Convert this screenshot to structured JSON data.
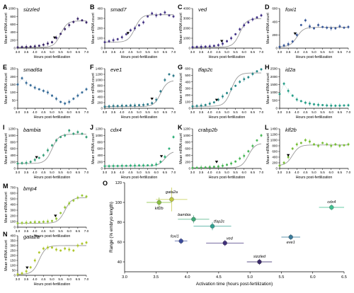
{
  "x_ticks": [
    "3.0",
    "3.5",
    "4.0",
    "4.5",
    "5.0",
    "5.5",
    "6.0",
    "6.5",
    "7.0"
  ],
  "x_label": "Hours post-fertilization",
  "y_label": "Mean mRNA count",
  "chart_data": [
    {
      "panel": "A",
      "title": "sizzled",
      "type": "line",
      "color": "#3d2a6b",
      "x": [
        3.0,
        3.25,
        3.5,
        3.75,
        4.0,
        4.25,
        4.5,
        4.75,
        5.0,
        5.25,
        5.5,
        5.75,
        6.0,
        6.25,
        6.5,
        6.75,
        7.0
      ],
      "values": [
        20,
        25,
        30,
        35,
        45,
        60,
        85,
        115,
        150,
        260,
        360,
        480,
        580,
        660,
        740,
        700,
        650
      ],
      "ylim": [
        0,
        1000
      ],
      "yticks": [
        "0",
        "200",
        "400",
        "600",
        "800",
        "1000"
      ],
      "arrow_x": 5.15,
      "fit": true
    },
    {
      "panel": "B",
      "title": "smad7",
      "type": "line",
      "color": "#4a3a88",
      "x": [
        3.0,
        3.25,
        3.5,
        3.75,
        4.0,
        4.25,
        4.5,
        4.75,
        5.0,
        5.25,
        5.5,
        5.75,
        6.0,
        6.25,
        6.5,
        6.75,
        7.0
      ],
      "values": [
        60,
        70,
        80,
        90,
        110,
        140,
        180,
        200,
        230,
        260,
        320,
        350,
        330,
        340,
        360,
        330,
        320
      ],
      "ylim": [
        0,
        400
      ],
      "yticks": [
        "0",
        "100",
        "200",
        "300",
        "400"
      ],
      "arrow_x": 4.35,
      "fit": true
    },
    {
      "panel": "C",
      "title": "ved",
      "type": "line",
      "color": "#433388",
      "x": [
        3.0,
        3.25,
        3.5,
        3.75,
        4.0,
        4.25,
        4.5,
        4.75,
        5.0,
        5.25,
        5.5,
        5.75,
        6.0,
        6.25,
        6.5,
        6.75,
        7.0
      ],
      "values": [
        100,
        120,
        130,
        150,
        180,
        230,
        300,
        450,
        700,
        1000,
        1400,
        1900,
        2300,
        2600,
        2900,
        3100,
        3300
      ],
      "ylim": [
        0,
        4000
      ],
      "yticks": [
        "0",
        "1000",
        "2000",
        "3000",
        "4000"
      ],
      "arrow_x": 4.7,
      "fit": true
    },
    {
      "panel": "D",
      "title": "foxi1",
      "type": "line",
      "color": "#3b5a9a",
      "x": [
        3.0,
        3.25,
        3.5,
        3.75,
        4.0,
        4.25,
        4.5,
        4.75,
        5.0,
        5.25,
        5.5,
        5.75,
        6.0,
        6.25,
        6.5,
        6.75,
        7.0
      ],
      "values": [
        20,
        40,
        60,
        100,
        200,
        350,
        420,
        330,
        300,
        350,
        320,
        310,
        300,
        300,
        330,
        310,
        320
      ],
      "ylim": [
        0,
        600
      ],
      "yticks": [
        "0",
        "200",
        "400",
        "600"
      ],
      "arrow_x": 3.9,
      "fit": true
    },
    {
      "panel": "E",
      "title": "smad6a",
      "type": "line",
      "color": "#3a6e9a",
      "x": [
        3.0,
        3.25,
        3.5,
        3.75,
        4.0,
        4.25,
        4.5,
        4.75,
        5.0,
        5.25,
        5.5,
        5.75,
        6.0,
        6.25,
        6.5,
        6.75,
        7.0
      ],
      "values": [
        150,
        190,
        160,
        145,
        130,
        120,
        110,
        100,
        80,
        60,
        40,
        30,
        40,
        60,
        80,
        100,
        120
      ],
      "ylim": [
        0,
        250
      ],
      "yticks": [
        "0",
        "50",
        "100",
        "150",
        "200",
        "250"
      ],
      "arrow_x": null,
      "fit": false
    },
    {
      "panel": "F",
      "title": "eve1",
      "type": "line",
      "color": "#2e7a8a",
      "x": [
        3.0,
        3.25,
        3.5,
        3.75,
        4.0,
        4.25,
        4.5,
        4.75,
        5.0,
        5.25,
        5.5,
        5.75,
        6.0,
        6.25,
        6.5,
        6.75,
        7.0
      ],
      "values": [
        60,
        70,
        80,
        80,
        90,
        90,
        100,
        100,
        110,
        120,
        140,
        180,
        300,
        600,
        1000,
        1200,
        1150
      ],
      "ylim": [
        0,
        1400
      ],
      "yticks": [
        "0",
        "200",
        "400",
        "600",
        "800",
        "1000",
        "1200",
        "1400"
      ],
      "arrow_x": 5.75,
      "fit": true
    },
    {
      "panel": "G",
      "title": "tfap2c",
      "type": "line",
      "color": "#2a8a8a",
      "x": [
        3.0,
        3.25,
        3.5,
        3.75,
        4.0,
        4.25,
        4.5,
        4.75,
        5.0,
        5.25,
        5.5,
        5.75,
        6.0,
        6.25,
        6.5,
        6.75,
        7.0
      ],
      "values": [
        30,
        35,
        40,
        50,
        70,
        90,
        130,
        180,
        230,
        290,
        340,
        400,
        440,
        470,
        520,
        560,
        590
      ],
      "ylim": [
        0,
        600
      ],
      "yticks": [
        "0",
        "100",
        "200",
        "300",
        "400",
        "500",
        "600"
      ],
      "arrow_x": 4.4,
      "fit": true
    },
    {
      "panel": "H",
      "title": "id2a",
      "type": "line",
      "color": "#2aa08a",
      "x": [
        3.0,
        3.25,
        3.5,
        3.75,
        4.0,
        4.25,
        4.5,
        4.75,
        5.0,
        5.25,
        5.5,
        5.75,
        6.0,
        6.25,
        6.5,
        6.75,
        7.0
      ],
      "values": [
        900,
        1550,
        1100,
        800,
        550,
        450,
        350,
        300,
        250,
        220,
        200,
        180,
        170,
        160,
        170,
        180,
        190
      ],
      "ylim": [
        0,
        2500
      ],
      "yticks": [
        "0",
        "500",
        "1000",
        "1500",
        "2000",
        "2500"
      ],
      "arrow_x": null,
      "fit": false
    },
    {
      "panel": "I",
      "title": "bambia",
      "type": "line",
      "color": "#3aa07a",
      "x": [
        3.0,
        3.25,
        3.5,
        3.75,
        4.0,
        4.25,
        4.5,
        4.75,
        5.0,
        5.25,
        5.5,
        5.75,
        6.0,
        6.25,
        6.5,
        6.75,
        7.0
      ],
      "values": [
        150,
        160,
        170,
        200,
        260,
        320,
        400,
        550,
        700,
        850,
        950,
        1000,
        1150,
        1050,
        1100,
        1050,
        950
      ],
      "ylim": [
        0,
        1200
      ],
      "yticks": [
        "0",
        "200",
        "400",
        "600",
        "800",
        "1000",
        "1200"
      ],
      "arrow_x": 4.1,
      "fit": true
    },
    {
      "panel": "J",
      "title": "cdx4",
      "type": "line",
      "color": "#30b07a",
      "x": [
        3.0,
        3.25,
        3.5,
        3.75,
        4.0,
        4.25,
        4.5,
        4.75,
        5.0,
        5.25,
        5.5,
        5.75,
        6.0,
        6.25,
        6.5,
        6.75,
        7.0
      ],
      "values": [
        70,
        70,
        75,
        75,
        80,
        80,
        85,
        85,
        90,
        90,
        95,
        100,
        120,
        200,
        350,
        600,
        950
      ],
      "ylim": [
        0,
        1200
      ],
      "yticks": [
        "0",
        "200",
        "400",
        "600",
        "800",
        "1000",
        "1200"
      ],
      "arrow_x": 6.3,
      "fit": true
    },
    {
      "panel": "K",
      "title": "crabp2b",
      "type": "line",
      "color": "#4cb85a",
      "x": [
        3.0,
        3.25,
        3.5,
        3.75,
        4.0,
        4.25,
        4.5,
        4.75,
        5.0,
        5.25,
        5.5,
        5.75,
        6.0,
        6.25,
        6.5,
        6.75,
        7.0
      ],
      "values": [
        20,
        20,
        25,
        30,
        40,
        50,
        60,
        80,
        110,
        150,
        210,
        300,
        380,
        520,
        680,
        850,
        1000
      ],
      "ylim": [
        0,
        1200
      ],
      "yticks": [
        "0",
        "200",
        "400",
        "600",
        "800",
        "1000",
        "1200"
      ],
      "arrow_x": 4.4,
      "fit": true
    },
    {
      "panel": "L",
      "title": "klf2b",
      "type": "line",
      "color": "#7ac03a",
      "x": [
        3.0,
        3.25,
        3.5,
        3.75,
        4.0,
        4.25,
        4.5,
        4.75,
        5.0,
        5.25,
        5.5,
        5.75,
        6.0,
        6.25,
        6.5,
        6.75,
        7.0
      ],
      "values": [
        100,
        200,
        400,
        700,
        850,
        900,
        1000,
        950,
        850,
        800,
        900,
        850,
        800,
        850,
        800,
        820,
        850
      ],
      "ylim": [
        0,
        1400
      ],
      "yticks": [
        "0",
        "200",
        "400",
        "600",
        "800",
        "1000",
        "1200",
        "1400"
      ],
      "arrow_x": 3.5,
      "fit": true
    },
    {
      "panel": "M",
      "title": "bmp4",
      "type": "line",
      "color": "#9ac83a",
      "x": [
        3.0,
        3.25,
        3.5,
        3.75,
        4.0,
        4.25,
        4.5,
        4.75,
        5.0,
        5.25,
        5.5,
        5.75,
        6.0,
        6.25,
        6.5,
        6.75,
        7.0
      ],
      "values": [
        70,
        75,
        80,
        85,
        90,
        90,
        95,
        100,
        110,
        150,
        250,
        350,
        420,
        470,
        520,
        560,
        540
      ],
      "ylim": [
        0,
        700
      ],
      "yticks": [
        "0",
        "100",
        "200",
        "300",
        "400",
        "500",
        "600",
        "700"
      ],
      "arrow_x": 5.2,
      "fit": true
    },
    {
      "panel": "N",
      "title": "gata2a",
      "type": "line",
      "color": "#b0c830",
      "x": [
        3.0,
        3.25,
        3.5,
        3.75,
        4.0,
        4.25,
        4.5,
        4.75,
        5.0,
        5.25,
        5.5,
        5.75,
        6.0,
        6.25,
        6.5,
        6.75,
        7.0
      ],
      "values": [
        10,
        20,
        40,
        80,
        150,
        230,
        270,
        280,
        280,
        260,
        250,
        270,
        260,
        250,
        300,
        320,
        330
      ],
      "ylim": [
        0,
        400
      ],
      "yticks": [
        "0",
        "50",
        "100",
        "150",
        "200",
        "250",
        "300",
        "350",
        "400"
      ],
      "arrow_x": 3.55,
      "fit": true
    },
    {
      "panel": "O",
      "type": "scatter",
      "xlabel": "Activation time (hours post-fertilization)",
      "ylabel": "Range (% embryo length)",
      "xlim": [
        3.0,
        6.5
      ],
      "ylim": [
        30,
        120
      ],
      "xticks": [
        "3.0",
        "3.5",
        "4.0",
        "4.5",
        "5.0",
        "5.5",
        "6.0",
        "6.5"
      ],
      "yticks": [
        "40",
        "60",
        "80",
        "100",
        "120"
      ],
      "points": [
        {
          "name": "gata2a",
          "x": 3.75,
          "y": 103,
          "xerr": 0.25,
          "yerr": 12,
          "color": "#c0c840"
        },
        {
          "name": "klf2b",
          "x": 3.55,
          "y": 100,
          "xerr": 0.2,
          "yerr": 5,
          "color": "#8ac040"
        },
        {
          "name": "bambia",
          "x": 4.1,
          "y": 83,
          "xerr": 0.25,
          "yerr": 4,
          "color": "#40a878"
        },
        {
          "name": "tfap2c",
          "x": 4.4,
          "y": 76,
          "xerr": 0.3,
          "yerr": 4,
          "color": "#30a090"
        },
        {
          "name": "foxi1",
          "x": 3.9,
          "y": 61,
          "xerr": 0.1,
          "yerr": 3,
          "color": "#3a4a9a"
        },
        {
          "name": "ved",
          "x": 4.6,
          "y": 59,
          "xerr": 0.3,
          "yerr": 3,
          "color": "#40307a"
        },
        {
          "name": "sizzled",
          "x": 5.15,
          "y": 40,
          "xerr": 0.2,
          "yerr": 3,
          "color": "#3a2a6a"
        },
        {
          "name": "eve1",
          "x": 5.65,
          "y": 65,
          "xerr": 0.15,
          "yerr": 3,
          "color": "#3a7a9a"
        },
        {
          "name": "cdx4",
          "x": 6.3,
          "y": 95,
          "xerr": 0.2,
          "yerr": 3,
          "color": "#40c090"
        }
      ]
    }
  ]
}
